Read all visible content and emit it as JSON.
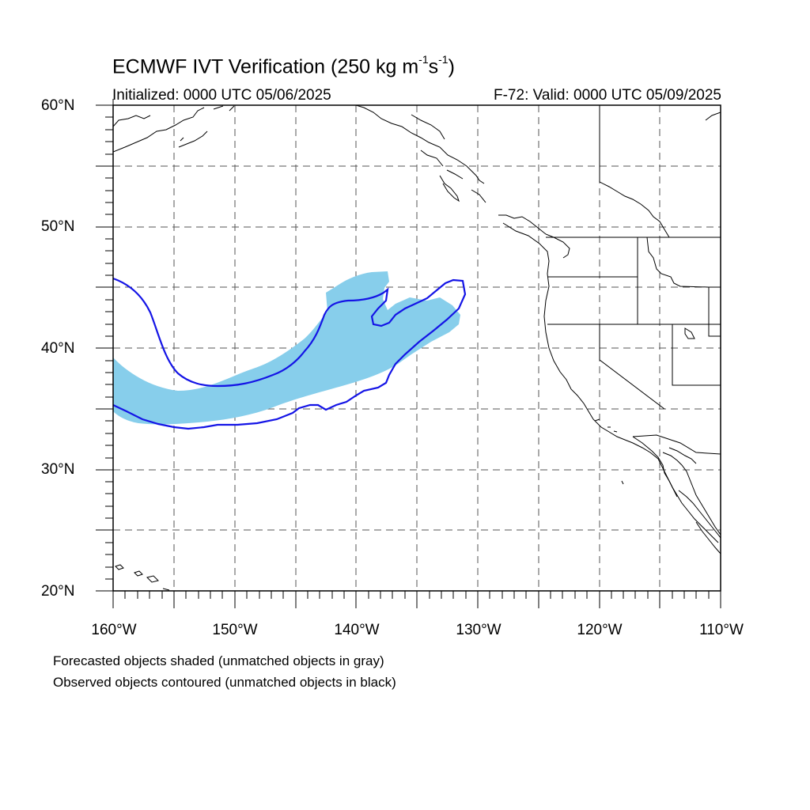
{
  "title": {
    "main": "ECMWF IVT Verification (250 kg m",
    "sup1": "-1",
    "mid": "s",
    "sup2": "-1",
    "end": ")"
  },
  "initialized": "Initialized: 0000 UTC 05/06/2025",
  "valid": "F-72: Valid: 0000 UTC 05/09/2025",
  "lat_labels": [
    "60°N",
    "50°N",
    "40°N",
    "30°N",
    "20°N"
  ],
  "lon_labels": [
    "160°W",
    "150°W",
    "140°W",
    "130°W",
    "120°W",
    "110°W"
  ],
  "legend": [
    "Forecasted objects shaded (unmatched objects in gray)",
    "Observed objects contoured (unmatched objects in black)"
  ],
  "colors": {
    "forecast_shade": "#87CEEB",
    "observed_contour": "#1414E6",
    "grid": "#555555",
    "coast": "#000000"
  },
  "map_extent": {
    "lon_min": -160,
    "lon_max": -110,
    "lat_min": 20,
    "lat_max": 60
  }
}
